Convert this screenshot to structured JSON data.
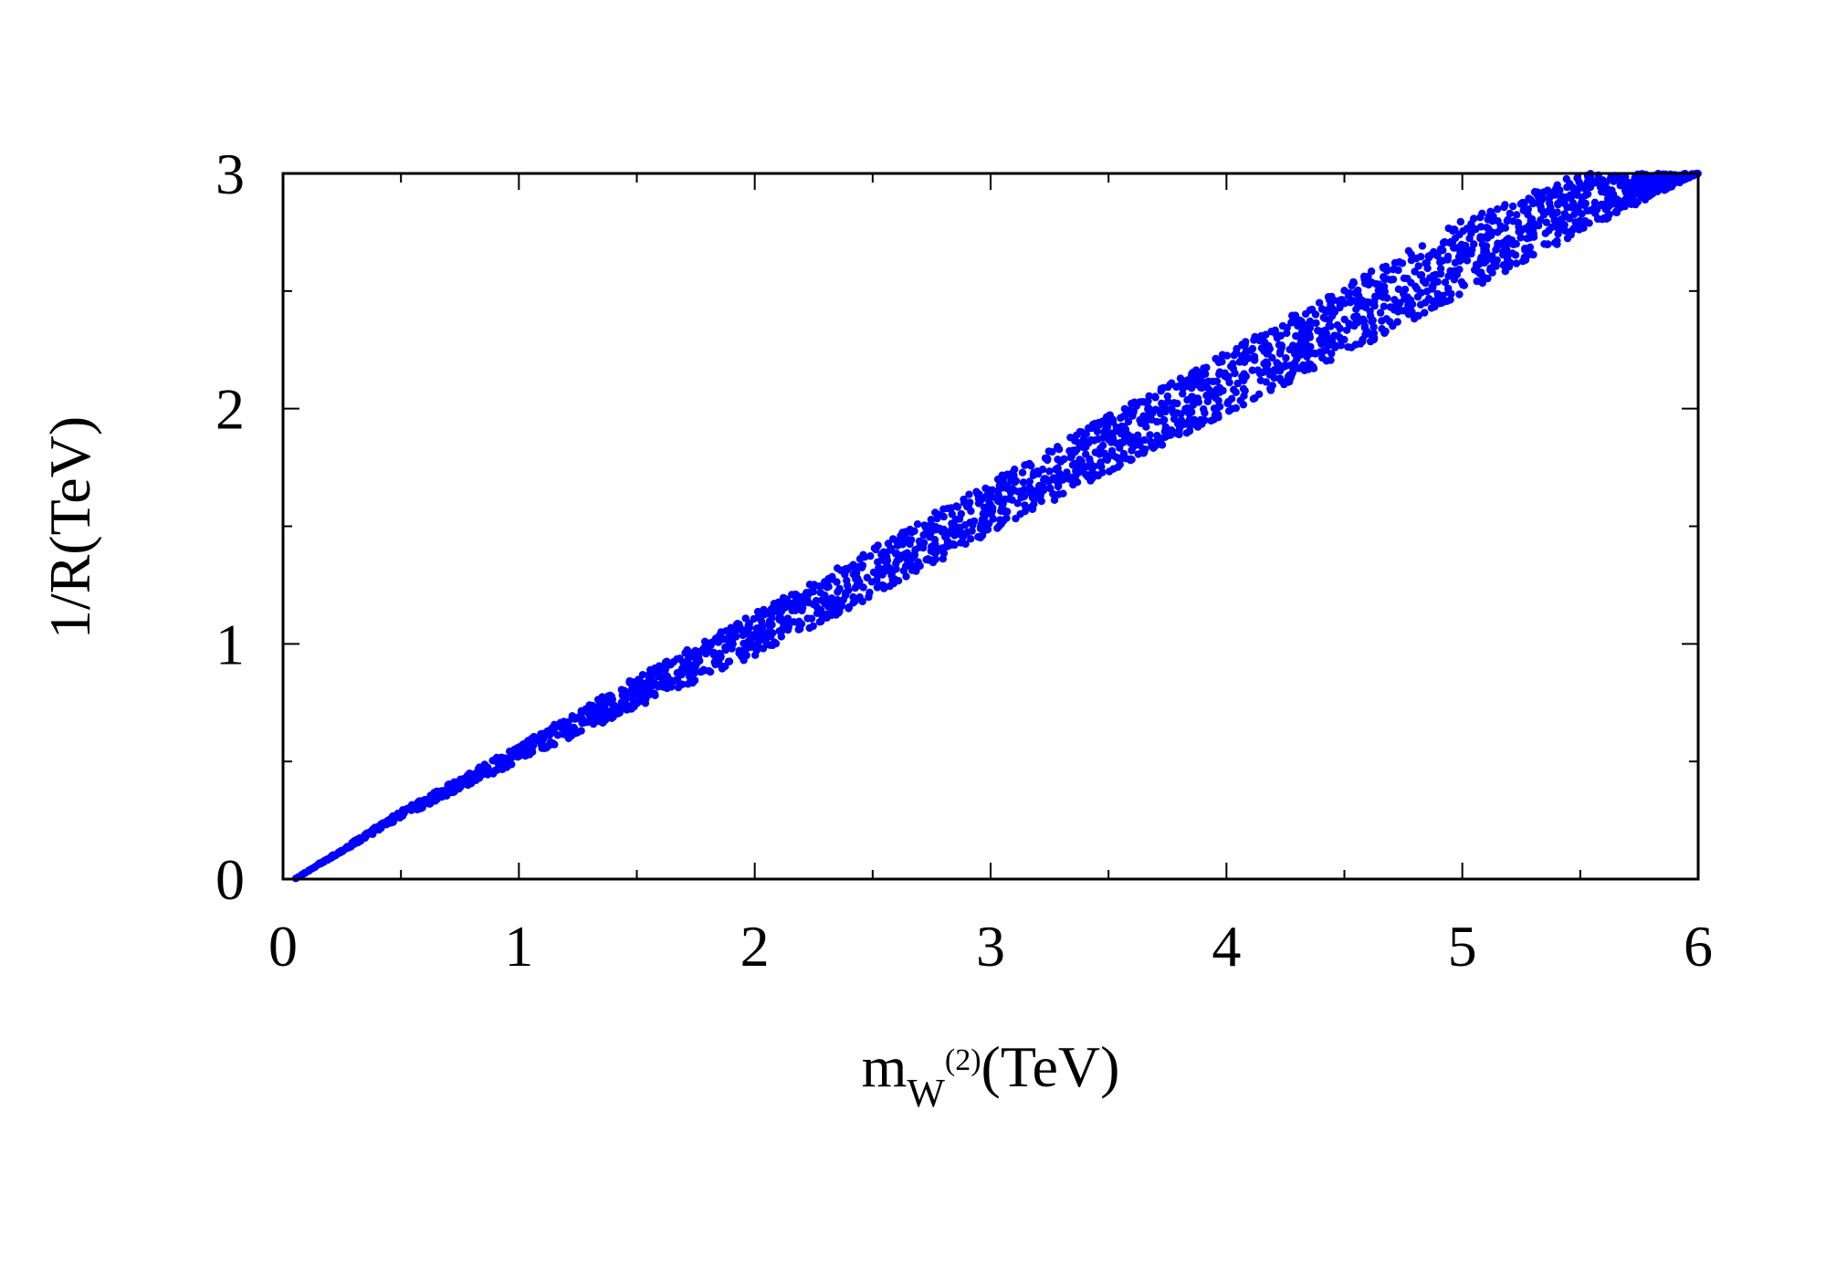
{
  "chart_data": {
    "type": "scatter",
    "xlabel": {
      "main": "m",
      "sub": "W",
      "sup": "(2)",
      "unit": "(TeV)"
    },
    "ylabel": "1/R(TeV)",
    "xlim": [
      0,
      6
    ],
    "ylim": [
      0,
      3
    ],
    "x_ticks": [
      "0",
      "1",
      "2",
      "3",
      "4",
      "5",
      "6"
    ],
    "y_ticks": [
      "0",
      "1",
      "2",
      "3"
    ],
    "grid": false,
    "marker_color": "#0000ff",
    "band": {
      "x": [
        0.05,
        0.5,
        1.0,
        1.5,
        2.0,
        2.5,
        3.0,
        3.5,
        4.0,
        4.5,
        5.0,
        5.5,
        6.0
      ],
      "y_upper": [
        0.0,
        0.29,
        0.57,
        0.86,
        1.13,
        1.41,
        1.69,
        1.97,
        2.24,
        2.52,
        2.8,
        3.0,
        3.0
      ],
      "y_lower": [
        0.0,
        0.26,
        0.5,
        0.73,
        0.95,
        1.2,
        1.47,
        1.73,
        1.98,
        2.23,
        2.48,
        2.75,
        3.0
      ]
    }
  }
}
